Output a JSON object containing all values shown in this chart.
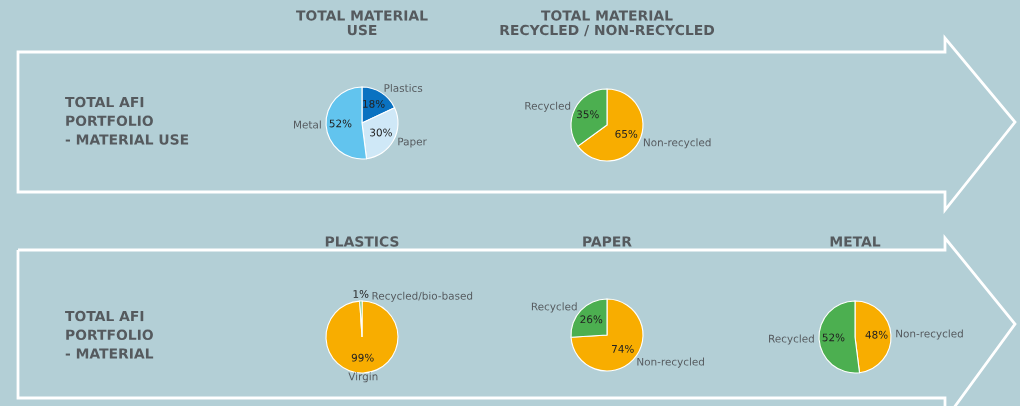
{
  "chart_data": [
    {
      "type": "pie",
      "title": "TOTAL MATERIAL\nUSE",
      "annotations": [
        "TOTAL AFI\nPORTFOLIO\n- MATERIAL USE"
      ],
      "categories": [
        "Plastics",
        "Paper",
        "Metal"
      ],
      "values": [
        18,
        30,
        52
      ],
      "value_labels": [
        "18%",
        "30%",
        "52%"
      ],
      "colors": [
        "#0a72c1",
        "#cfe8f7",
        "#62c4ee"
      ]
    },
    {
      "type": "pie",
      "title": "TOTAL MATERIAL\nRECYCLED / NON-RECYCLED",
      "categories": [
        "Non-recycled",
        "Recycled"
      ],
      "values": [
        65,
        35
      ],
      "value_labels": [
        "65%",
        "35%"
      ],
      "colors": [
        "#f8ad00",
        "#4caf50"
      ]
    },
    {
      "type": "pie",
      "title": "PLASTICS",
      "annotations": [
        "TOTAL AFI\nPORTFOLIO\n- MATERIAL"
      ],
      "categories": [
        "Virgin",
        "Recycled/bio-based"
      ],
      "values": [
        99,
        1
      ],
      "value_labels": [
        "99%",
        "1%"
      ],
      "colors": [
        "#f8ad00",
        "#4caf50"
      ]
    },
    {
      "type": "pie",
      "title": "PAPER",
      "categories": [
        "Non-recycled",
        "Recycled"
      ],
      "values": [
        74,
        26
      ],
      "value_labels": [
        "74%",
        "26%"
      ],
      "colors": [
        "#f8ad00",
        "#4caf50"
      ]
    },
    {
      "type": "pie",
      "title": "METAL",
      "categories": [
        "Non-recycled",
        "Recycled"
      ],
      "values": [
        48,
        52
      ],
      "value_labels": [
        "48%",
        "52%"
      ],
      "colors": [
        "#f8ad00",
        "#4caf50"
      ]
    }
  ]
}
